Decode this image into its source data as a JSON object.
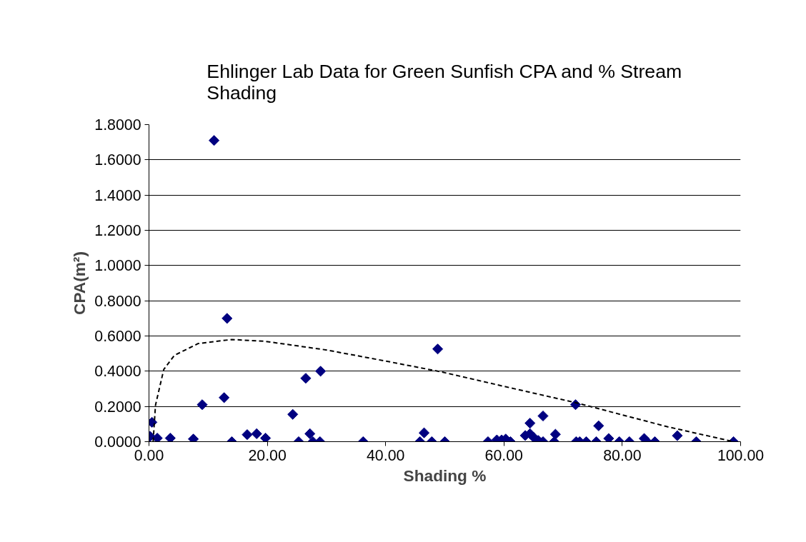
{
  "chart_data": {
    "type": "scatter",
    "title": "Ehlinger Lab Data for Green Sunfish CPA and % Stream Shading",
    "xlabel": "Shading %",
    "ylabel": "CPA(m²)",
    "xlim": [
      0,
      100
    ],
    "ylim": [
      0,
      1.8
    ],
    "xticks": [
      {
        "value": 0,
        "label": "0.00"
      },
      {
        "value": 20,
        "label": "20.00"
      },
      {
        "value": 40,
        "label": "40.00"
      },
      {
        "value": 60,
        "label": "60.00"
      },
      {
        "value": 80,
        "label": "80.00"
      },
      {
        "value": 100,
        "label": "100.00"
      }
    ],
    "yticks": [
      {
        "value": 0,
        "label": "0.0000"
      },
      {
        "value": 0.2,
        "label": "0.2000"
      },
      {
        "value": 0.4,
        "label": "0.4000"
      },
      {
        "value": 0.6,
        "label": "0.6000"
      },
      {
        "value": 0.8,
        "label": "0.8000"
      },
      {
        "value": 1.0,
        "label": "1.0000"
      },
      {
        "value": 1.2,
        "label": "1.2000"
      },
      {
        "value": 1.4,
        "label": "1.4000"
      },
      {
        "value": 1.6,
        "label": "1.6000"
      },
      {
        "value": 1.8,
        "label": "1.8000"
      }
    ],
    "grid": "y",
    "marker": "diamond",
    "series": [
      {
        "color": "#000080",
        "x": [
          0.2,
          0.5,
          1.4,
          3.6,
          7.5,
          9.0,
          11.0,
          12.7,
          13.2,
          14.0,
          16.6,
          18.2,
          19.7,
          24.3,
          25.3,
          27.2,
          26.5,
          27.7,
          28.9,
          29.0,
          36.2,
          45.8,
          46.5,
          47.8,
          48.8,
          50.0,
          57.3,
          58.8,
          59.6,
          60.3,
          61.1,
          63.6,
          64.4,
          64.4,
          65.0,
          65.8,
          66.6,
          66.6,
          68.7,
          68.5,
          72.1,
          72.2,
          72.8,
          73.9,
          75.6,
          76.0,
          77.7,
          79.5,
          81.2,
          83.7,
          84.2,
          85.5,
          89.3,
          92.5,
          98.8
        ],
        "values": [
          0.03,
          0.11,
          0.02,
          0.02,
          0.015,
          0.21,
          1.71,
          0.25,
          0.7,
          0.0,
          0.04,
          0.045,
          0.02,
          0.155,
          0.0,
          0.045,
          0.36,
          0.0,
          0.0,
          0.4,
          0.0,
          0.0,
          0.05,
          0.0,
          0.526,
          0.0,
          0.0,
          0.01,
          0.01,
          0.015,
          0.0,
          0.035,
          0.105,
          0.045,
          0.025,
          0.007,
          0.146,
          0.0,
          0.042,
          0.0,
          0.21,
          0.0,
          0.0,
          0.0,
          0.0,
          0.09,
          0.018,
          0.0,
          0.0,
          0.018,
          0.0,
          0.0,
          0.034,
          0.0,
          0.0
        ]
      },
      {
        "type": "line",
        "color": "#000000",
        "line_style": "dashed",
        "marker": "none",
        "x": [
          0.7,
          1.1,
          2.5,
          4.3,
          8.3,
          14.0,
          19.6,
          30.1,
          40.1,
          49.3,
          60.0,
          72.3,
          87.6,
          98.8
        ],
        "values": [
          0.0,
          0.207,
          0.41,
          0.49,
          0.557,
          0.58,
          0.57,
          0.52,
          0.457,
          0.397,
          0.314,
          0.22,
          0.085,
          0.0
        ]
      }
    ]
  }
}
